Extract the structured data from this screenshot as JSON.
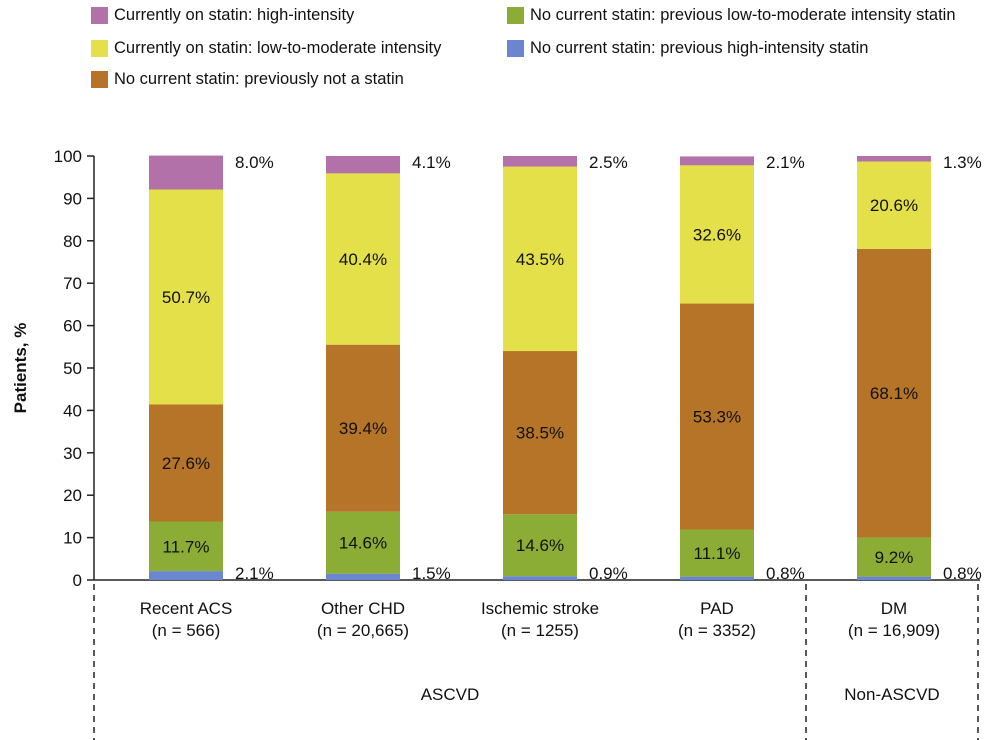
{
  "chart_data": {
    "type": "bar",
    "stacked": true,
    "ylabel": "Patients, %",
    "ylim": [
      0,
      100
    ],
    "yticks": [
      "0",
      "10",
      "20",
      "30",
      "40",
      "50",
      "60",
      "70",
      "80",
      "90",
      "100"
    ],
    "categories": [
      {
        "name": "Recent ACS",
        "n": "(n = 566)"
      },
      {
        "name": "Other CHD",
        "n": "(n = 20,665)"
      },
      {
        "name": "Ischemic stroke",
        "n": "(n = 1255)"
      },
      {
        "name": "PAD",
        "n": "(n = 3352)"
      },
      {
        "name": "DM",
        "n": "(n = 16,909)"
      }
    ],
    "groups": [
      {
        "label": "ASCVD",
        "categories": [
          0,
          1,
          2,
          3
        ]
      },
      {
        "label": "Non-ASCVD",
        "categories": [
          4
        ]
      }
    ],
    "series": [
      {
        "name": "No current statin: previous high-intensity statin",
        "color": "#6a86cf",
        "values": [
          2.1,
          1.5,
          0.9,
          0.8,
          0.8
        ],
        "labels": [
          "2.1%",
          "1.5%",
          "0.9%",
          "0.8%",
          "0.8%"
        ],
        "label_position": "outside"
      },
      {
        "name": "No current statin: previous low-to-moderate intensity statin",
        "color": "#8bad35",
        "values": [
          11.7,
          14.6,
          14.6,
          11.1,
          9.2
        ],
        "labels": [
          "11.7%",
          "14.6%",
          "14.6%",
          "11.1%",
          "9.2%"
        ],
        "label_position": "inside"
      },
      {
        "name": "No current statin: previously not a statin",
        "color": "#b57427",
        "values": [
          27.6,
          39.4,
          38.5,
          53.3,
          68.1
        ],
        "labels": [
          "27.6%",
          "39.4%",
          "38.5%",
          "53.3%",
          "68.1%"
        ],
        "label_position": "inside"
      },
      {
        "name": "Currently on statin: low-to-moderate intensity",
        "color": "#e4e04a",
        "values": [
          50.7,
          40.4,
          43.5,
          32.6,
          20.6
        ],
        "labels": [
          "50.7%",
          "40.4%",
          "43.5%",
          "32.6%",
          "20.6%"
        ],
        "label_position": "inside"
      },
      {
        "name": "Currently on statin: high-intensity",
        "color": "#b271a8",
        "values": [
          8.0,
          4.1,
          2.5,
          2.1,
          1.3
        ],
        "labels": [
          "8.0%",
          "4.1%",
          "2.5%",
          "2.1%",
          "1.3%"
        ],
        "label_position": "outside"
      }
    ],
    "legend": {
      "placement": "top",
      "order": [
        4,
        1,
        3,
        0,
        2
      ]
    }
  }
}
